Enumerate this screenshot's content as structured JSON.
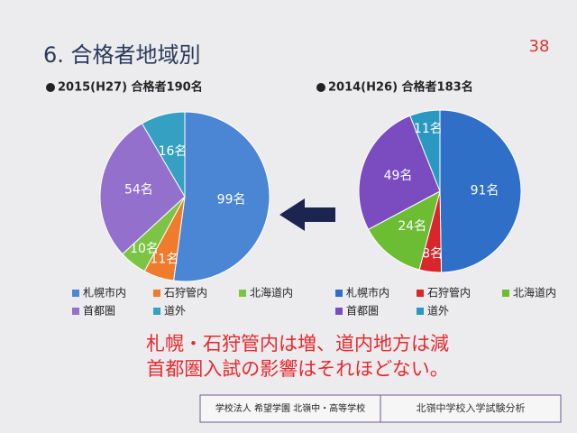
{
  "slide": {
    "title": "6. 合格者地域別",
    "page": "38",
    "conclusion": [
      "札幌・石狩管内は増、道内地方は減",
      "首都圏入試の影響はそれほどない。"
    ],
    "footer_school": "学校法人 希望学園 北嶺中・高等学校",
    "footer_note": "北嶺中学校入学試験分析"
  },
  "chart_data": [
    {
      "type": "pie",
      "title": "2015(H27) 合格者190名",
      "categories": [
        "札幌市内",
        "石狩管内",
        "北海道内",
        "首都圏",
        "道外"
      ],
      "values": [
        99,
        11,
        10,
        54,
        16
      ],
      "value_labels": [
        "99名",
        "11名",
        "10名",
        "54名",
        "16名"
      ],
      "colors": [
        "#4a86d4",
        "#f07b2c",
        "#7cc444",
        "#9270cc",
        "#35a0c2"
      ]
    },
    {
      "type": "pie",
      "title": "2014(H26) 合格者183名",
      "categories": [
        "札幌市内",
        "石狩管内",
        "北海道内",
        "首都圏",
        "道外"
      ],
      "values": [
        91,
        8,
        24,
        49,
        11
      ],
      "value_labels": [
        "91名",
        "8名",
        "24名",
        "49名",
        "11名"
      ],
      "colors": [
        "#2f6fc8",
        "#d8262a",
        "#6cbc34",
        "#7a4cc0",
        "#2a98c0"
      ]
    }
  ]
}
